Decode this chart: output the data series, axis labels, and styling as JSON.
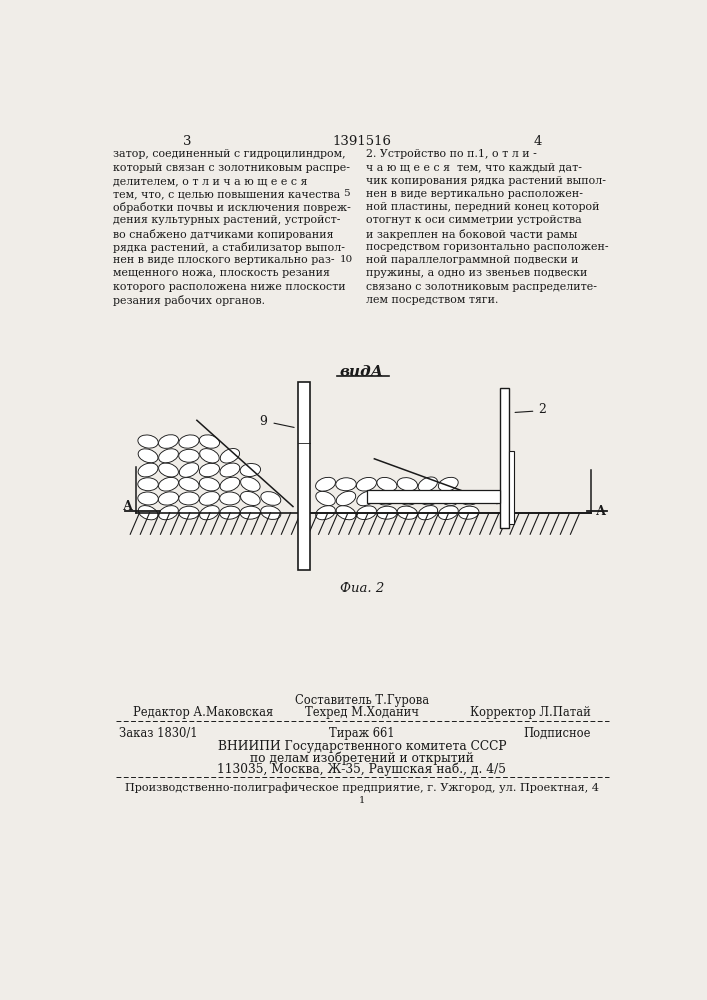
{
  "bg_color": "#f0ede8",
  "page_num_left": "3",
  "page_num_center": "1391516",
  "page_num_right": "4",
  "col1_text": [
    "затор, соединенный с гидроцилиндром,",
    "который связан с золотниковым распре-",
    "делителем, о т л и ч а ю щ е е с я",
    "тем, что, с целью повышения качества",
    "обработки почвы и исключения повреж-",
    "дения культурных растений, устройст-",
    "во снабжено датчиками копирования",
    "рядка растений, а стабилизатор выпол-",
    "нен в виде плоского вертикально раз-",
    "мещенного ножа, плоскость резания",
    "которого расположена ниже плоскости",
    "резания рабочих органов."
  ],
  "col1_line_num5_row": 3,
  "col1_line_num10_row": 8,
  "col2_text": [
    "2. Устройство по п.1, о т л и -",
    "ч а ю щ е е с я  тем, что каждый дат-",
    "чик копирования рядка растений выпол-",
    "нен в виде вертикально расположен-",
    "ной пластины, передний конец которой",
    "отогнут к оси симметрии устройства",
    "и закреплен на боковой части рамы",
    "посредством горизонтально расположен-",
    "ной параллелограммной подвески и",
    "пружины, а одно из звеньев подвески",
    "связано с золотниковым распределите-",
    "лем посредством тяги."
  ],
  "view_label": "видА",
  "fig_label": "Фиа. 2",
  "label_9": "9",
  "label_2": "2",
  "label_A_left": "А",
  "label_A_right": "А",
  "footer_editor": "Редактор А.Маковская",
  "footer_sostavitel": "Составитель Т.Гурова",
  "footer_tehred": "Техред М.Ходанич",
  "footer_korrektor": "Корректор Л.Патай",
  "footer_zakaz": "Заказ 1830/1",
  "footer_tirazh": "Тираж 661",
  "footer_podpisnoe": "Подписное",
  "footer_vniipи": "ВНИИПИ Государственного комитета СССР",
  "footer_po_delam": "по делам изобретений и открытий",
  "footer_address": "113035, Москва, Ж-35, Раушская наб., д. 4/5",
  "footer_production": "Производственно-полиграфическое предприятие, г. Ужгород, ул. Проектная, 4",
  "text_color": "#1a1a1a",
  "diagram_color": "#1a1a1a"
}
